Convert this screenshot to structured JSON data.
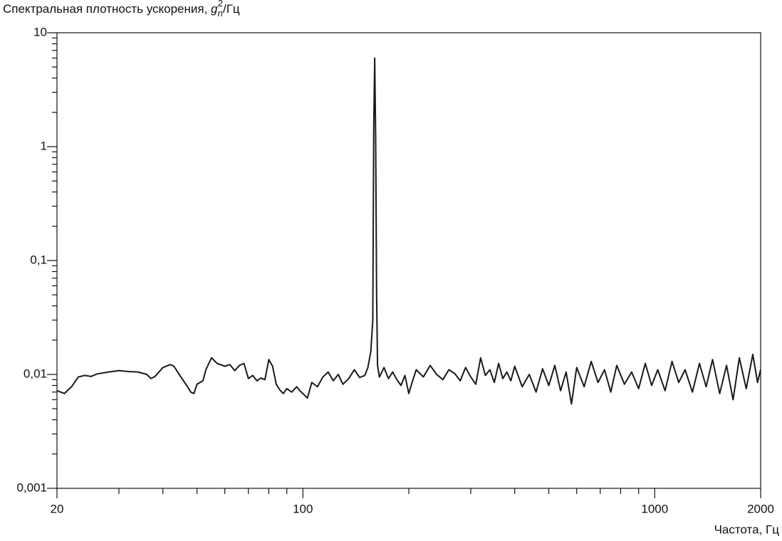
{
  "chart_data": {
    "type": "line",
    "y_label": {
      "text": "Спектральная плотность ускорения, ",
      "symbol": "g",
      "subscript": "n",
      "superscript": "2",
      "unit": "/Гц"
    },
    "x_label": "Частота, Гц",
    "xscale": "log",
    "yscale": "log",
    "xlim": [
      20,
      2000
    ],
    "ylim": [
      0.001,
      10
    ],
    "xticks": [
      20,
      100,
      1000,
      2000
    ],
    "yticks": [
      {
        "value": 0.001,
        "label": "0,001"
      },
      {
        "value": 0.01,
        "label": "0,01"
      },
      {
        "value": 0.1,
        "label": "0,1"
      },
      1,
      10
    ],
    "minor_xticks": [
      30,
      40,
      50,
      60,
      70,
      80,
      90,
      200,
      300,
      400,
      500,
      600,
      700,
      800,
      900
    ],
    "minor_yticks": [
      0.002,
      0.003,
      0.004,
      0.005,
      0.006,
      0.007,
      0.008,
      0.009,
      0.02,
      0.03,
      0.04,
      0.05,
      0.06,
      0.07,
      0.08,
      0.09,
      0.2,
      0.3,
      0.4,
      0.5,
      0.6,
      0.7,
      0.8,
      0.9,
      2,
      3,
      4,
      5,
      6,
      7,
      8,
      9
    ],
    "color": "#1a1a1a",
    "x": [
      20,
      21,
      22,
      23,
      24,
      25,
      26,
      28,
      30,
      32,
      34,
      36,
      37,
      38,
      40,
      42,
      43,
      45,
      47,
      48,
      49,
      50,
      52,
      53,
      55,
      57,
      60,
      62,
      64,
      66,
      68,
      70,
      72,
      74,
      76,
      78,
      80,
      82,
      84,
      86,
      88,
      90,
      93,
      96,
      98,
      100,
      103,
      106,
      110,
      114,
      118,
      122,
      126,
      130,
      135,
      140,
      145,
      150,
      153,
      156,
      158,
      159,
      160,
      161,
      162,
      163,
      165,
      170,
      175,
      180,
      185,
      190,
      195,
      200,
      205,
      210,
      220,
      230,
      240,
      250,
      260,
      270,
      280,
      290,
      300,
      310,
      320,
      330,
      340,
      350,
      360,
      370,
      380,
      390,
      400,
      420,
      440,
      460,
      480,
      500,
      520,
      540,
      560,
      580,
      600,
      630,
      660,
      690,
      720,
      750,
      780,
      820,
      860,
      900,
      940,
      980,
      1020,
      1070,
      1120,
      1170,
      1220,
      1280,
      1340,
      1400,
      1460,
      1530,
      1600,
      1670,
      1740,
      1820,
      1900,
      1960,
      2000
    ],
    "values": [
      0.0072,
      0.0068,
      0.0078,
      0.0095,
      0.0098,
      0.0096,
      0.0101,
      0.0105,
      0.0108,
      0.0106,
      0.0105,
      0.01,
      0.0092,
      0.0096,
      0.0115,
      0.0122,
      0.0118,
      0.0095,
      0.0078,
      0.007,
      0.0068,
      0.0082,
      0.0088,
      0.011,
      0.014,
      0.0125,
      0.0118,
      0.0122,
      0.0108,
      0.012,
      0.0125,
      0.0092,
      0.0098,
      0.0088,
      0.0093,
      0.009,
      0.0135,
      0.0118,
      0.0082,
      0.0073,
      0.0068,
      0.0075,
      0.007,
      0.0078,
      0.0072,
      0.0068,
      0.0062,
      0.0085,
      0.0078,
      0.0095,
      0.0105,
      0.0088,
      0.01,
      0.0082,
      0.0092,
      0.011,
      0.0094,
      0.0098,
      0.0115,
      0.016,
      0.03,
      1.5,
      6.0,
      1.2,
      0.05,
      0.012,
      0.0095,
      0.0115,
      0.0092,
      0.0105,
      0.009,
      0.008,
      0.0098,
      0.0068,
      0.0088,
      0.011,
      0.0095,
      0.012,
      0.01,
      0.009,
      0.011,
      0.0102,
      0.0088,
      0.0115,
      0.0095,
      0.0082,
      0.014,
      0.0098,
      0.011,
      0.0085,
      0.0125,
      0.0092,
      0.0105,
      0.0088,
      0.0118,
      0.0078,
      0.01,
      0.007,
      0.0112,
      0.008,
      0.012,
      0.0072,
      0.0105,
      0.0055,
      0.0115,
      0.0078,
      0.013,
      0.0085,
      0.011,
      0.007,
      0.012,
      0.0082,
      0.0105,
      0.0075,
      0.0125,
      0.008,
      0.011,
      0.0072,
      0.013,
      0.0085,
      0.011,
      0.007,
      0.0125,
      0.0078,
      0.0135,
      0.0068,
      0.012,
      0.006,
      0.014,
      0.0075,
      0.015,
      0.0085,
      0.011
    ]
  }
}
